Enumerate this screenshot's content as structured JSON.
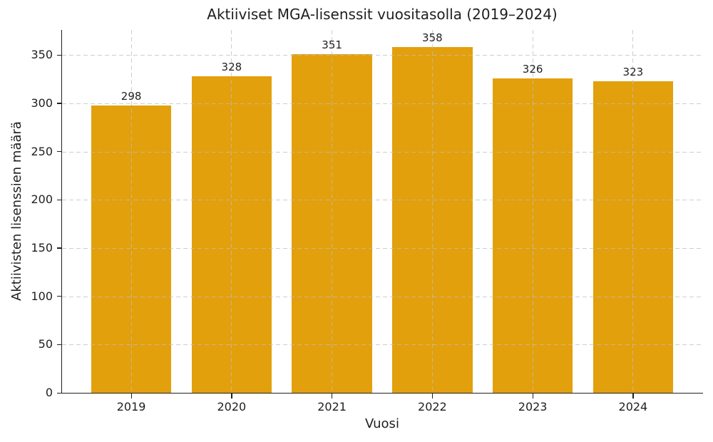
{
  "chart_data": {
    "type": "bar",
    "title": "Aktiiviset MGA-lisenssit vuositasolla (2019–2024)",
    "xlabel": "Vuosi",
    "ylabel": "Aktiivisten lisenssien määrä",
    "categories": [
      "2019",
      "2020",
      "2021",
      "2022",
      "2023",
      "2024"
    ],
    "values": [
      298,
      328,
      351,
      358,
      326,
      323
    ],
    "yticks": [
      0,
      50,
      100,
      150,
      200,
      250,
      300,
      350
    ],
    "ylim": [
      0,
      376
    ],
    "grid": true,
    "grid_linestyle": "dashed",
    "grid_on_top_of_bars": true,
    "legend_position": "none",
    "bar_color": "#E2A00D",
    "grid_color": "#bdbdbd",
    "axis_color": "#1f1f1f",
    "text_color": "#1f1f1f",
    "background_color": "#ffffff"
  }
}
